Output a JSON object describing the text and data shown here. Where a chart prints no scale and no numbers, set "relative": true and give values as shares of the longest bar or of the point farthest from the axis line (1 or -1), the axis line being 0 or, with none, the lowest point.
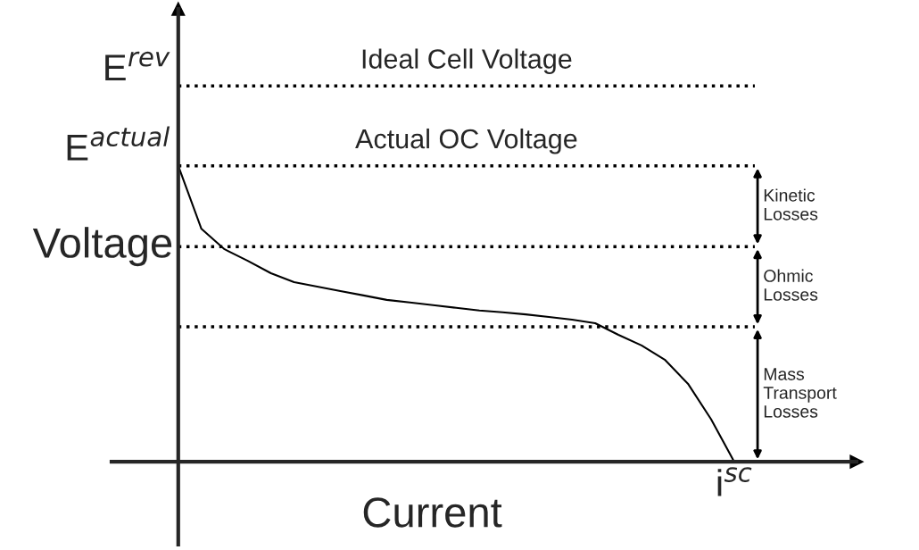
{
  "chart_data": {
    "type": "line",
    "relative": true,
    "xlabel": "Current",
    "ylabel": "Voltage",
    "color": "#000000",
    "line_style": "solid",
    "marker": "none",
    "grid": false,
    "legend": false,
    "categories": [
      null,
      null,
      null,
      null,
      null,
      null,
      null,
      null,
      null,
      null,
      null,
      null,
      null,
      null,
      null,
      null,
      null,
      null,
      null,
      null,
      null,
      null,
      null,
      null,
      null
    ],
    "values": [
      1.0,
      0.787,
      0.718,
      0.679,
      0.637,
      0.607,
      0.592,
      0.577,
      0.562,
      0.547,
      0.538,
      0.529,
      0.52,
      0.511,
      0.505,
      0.498,
      0.489,
      0.48,
      0.468,
      0.429,
      0.393,
      0.345,
      0.264,
      0.144,
      0
    ],
    "annotations": [
      "Ideal Cell Voltage",
      "Actual OC Voltage",
      "i$^{sc}$",
      "Kinetic\nLosses",
      "Ohmic\nLosses",
      "Mass\nTransport\nLosses"
    ],
    "ref_lines": [
      {
        "axis": "y",
        "value": 1.27,
        "label": "E$^{rev}$",
        "line_style": "dotted",
        "color": "#000000"
      },
      {
        "axis": "y",
        "value": 1.0,
        "label": "E$^{actual}$",
        "line_style": "dotted",
        "color": "#000000"
      },
      {
        "axis": "y",
        "value": 0.727,
        "line_style": "dotted",
        "color": "#000000"
      },
      {
        "axis": "y",
        "value": 0.456,
        "line_style": "dotted",
        "color": "#000000"
      }
    ]
  }
}
